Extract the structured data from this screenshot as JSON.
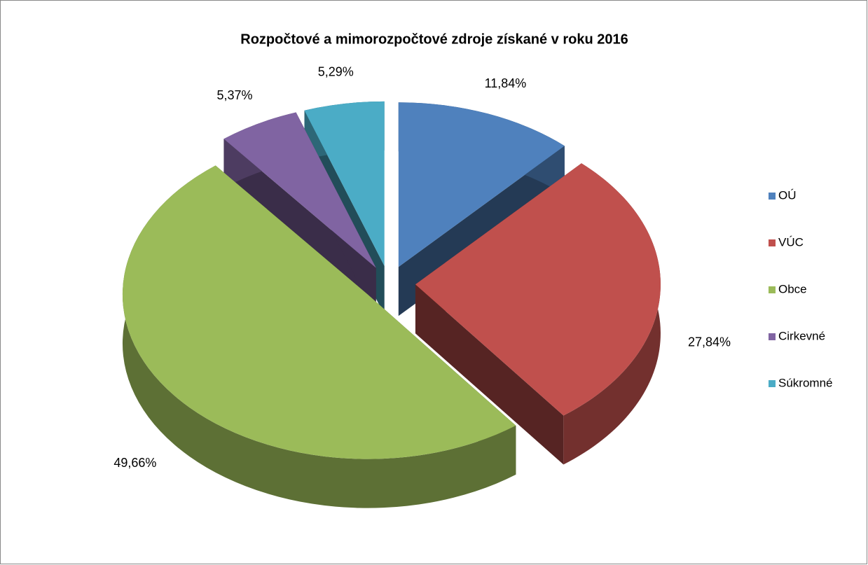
{
  "chart_data": {
    "type": "pie",
    "title": "Rozpočtové a mimorozpočtové zdroje získané v roku 2016",
    "categories": [
      "OÚ",
      "VÚC",
      "Obce",
      "Cirkevné",
      "Súkromné"
    ],
    "values": [
      11.84,
      27.84,
      49.66,
      5.37,
      5.29
    ],
    "value_labels": [
      "11,84%",
      "27,84%",
      "49,66%",
      "5,37%",
      "5,29%"
    ],
    "colors": [
      "#4f81bd",
      "#c0504d",
      "#9bbb59",
      "#8064a2",
      "#4bacc6"
    ],
    "legend": "right"
  }
}
